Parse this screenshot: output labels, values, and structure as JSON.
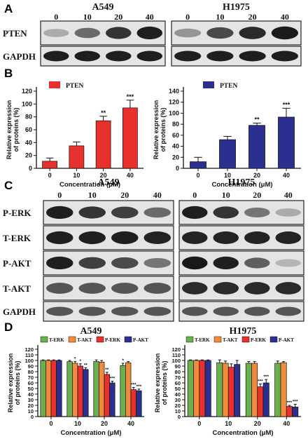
{
  "panel_labels": {
    "a": "A",
    "b": "B",
    "c": "C",
    "d": "D"
  },
  "panel_a": {
    "cells": [
      {
        "title": "A549",
        "concentrations": [
          "0",
          "10",
          "20",
          "40"
        ],
        "bands": [
          {
            "name": "PTEN",
            "intensity": [
              0.3,
              0.6,
              0.85,
              0.95
            ]
          },
          {
            "name": "GAPDH",
            "intensity": [
              0.95,
              0.95,
              0.95,
              0.95
            ]
          }
        ]
      },
      {
        "title": "H1975",
        "concentrations": [
          "0",
          "10",
          "20",
          "40"
        ],
        "bands": [
          {
            "name": "PTEN",
            "intensity": [
              0.4,
              0.75,
              0.9,
              0.97
            ]
          },
          {
            "name": "GAPDH",
            "intensity": [
              0.95,
              0.95,
              0.95,
              0.95
            ]
          }
        ]
      }
    ]
  },
  "panel_c": {
    "cells": [
      {
        "title": "A549",
        "concentrations": [
          "0",
          "10",
          "20",
          "40"
        ],
        "bands": [
          {
            "name": "P-ERK",
            "intensity": [
              0.95,
              0.85,
              0.8,
              0.6
            ]
          },
          {
            "name": "T-ERK",
            "intensity": [
              0.95,
              0.95,
              0.95,
              0.93
            ]
          },
          {
            "name": "P-AKT",
            "intensity": [
              0.95,
              0.8,
              0.75,
              0.55
            ]
          },
          {
            "name": "T-AKT",
            "intensity": [
              0.7,
              0.7,
              0.7,
              0.7
            ]
          },
          {
            "name": "GAPDH",
            "intensity": [
              0.7,
              0.7,
              0.7,
              0.7
            ]
          }
        ]
      },
      {
        "title": "H1975",
        "concentrations": [
          "0",
          "10",
          "20",
          "40"
        ],
        "bands": [
          {
            "name": "P-ERK",
            "intensity": [
              0.95,
              0.85,
              0.55,
              0.3
            ]
          },
          {
            "name": "T-ERK",
            "intensity": [
              0.93,
              0.93,
              0.93,
              0.93
            ]
          },
          {
            "name": "P-AKT",
            "intensity": [
              0.98,
              0.95,
              0.65,
              0.25
            ]
          },
          {
            "name": "T-AKT",
            "intensity": [
              0.9,
              0.9,
              0.9,
              0.9
            ]
          },
          {
            "name": "GAPDH",
            "intensity": [
              0.7,
              0.7,
              0.7,
              0.7
            ]
          }
        ]
      }
    ]
  },
  "chart_data": [
    {
      "type": "bar",
      "title": "",
      "categories": [
        "0",
        "10",
        "20",
        "40"
      ],
      "xlabel": "Concentration (μM)",
      "ylabel": "Relative expression\nof proteins (%)",
      "ylim": [
        0,
        120
      ],
      "yticks": [
        0,
        20,
        40,
        60,
        80,
        100,
        120
      ],
      "grid": false,
      "legend": "top-left",
      "series": [
        {
          "name": "PTEN",
          "color": "#e8302c",
          "values": [
            11,
            35,
            74,
            94
          ],
          "errors": [
            5,
            6,
            7,
            12
          ],
          "sig": [
            "",
            "",
            "**",
            "***"
          ]
        }
      ]
    },
    {
      "type": "bar",
      "title": "",
      "categories": [
        "0",
        "10",
        "20",
        "40"
      ],
      "xlabel": "Concentration (μM)",
      "ylabel": "Relative expression\nof proteins (%)",
      "ylim": [
        0,
        140
      ],
      "yticks": [
        0,
        20,
        40,
        60,
        80,
        100,
        120,
        140
      ],
      "grid": false,
      "legend": "top-left",
      "series": [
        {
          "name": "PTEN",
          "color": "#2b2f8f",
          "values": [
            12,
            52,
            78,
            93
          ],
          "errors": [
            8,
            6,
            4,
            16
          ],
          "sig": [
            "",
            "",
            "**",
            "***"
          ]
        }
      ]
    },
    {
      "type": "bar",
      "title": "A549",
      "categories": [
        "0",
        "10",
        "20",
        "40"
      ],
      "xlabel": "Concentration (μM)",
      "ylabel": "Relative expression\nof proteins (%)",
      "ylim": [
        0,
        120
      ],
      "yticks": [
        0,
        10,
        20,
        30,
        40,
        50,
        60,
        70,
        80,
        90,
        100,
        110,
        120
      ],
      "grid": false,
      "legend": "top",
      "series": [
        {
          "name": "T-ERK",
          "color": "#6ab04c",
          "values": [
            100,
            98,
            98,
            91
          ],
          "errors": [
            1,
            2,
            3,
            4
          ],
          "sig": [
            "",
            "",
            "",
            "*"
          ]
        },
        {
          "name": "T-AKT",
          "color": "#f08a3c",
          "values": [
            100,
            95,
            97,
            96
          ],
          "errors": [
            1,
            3,
            3,
            2
          ],
          "sig": [
            "",
            "*",
            "",
            ""
          ]
        },
        {
          "name": "P-ERK",
          "color": "#e8302c",
          "values": [
            100,
            90,
            75,
            48
          ],
          "errors": [
            1,
            4,
            4,
            4
          ],
          "sig": [
            "",
            "*",
            "**",
            "***"
          ]
        },
        {
          "name": "P-AKT",
          "color": "#2b2f8f",
          "values": [
            100,
            84,
            60,
            46
          ],
          "errors": [
            1,
            3,
            3,
            3
          ],
          "sig": [
            "",
            "**",
            "***",
            "***"
          ]
        }
      ]
    },
    {
      "type": "bar",
      "title": "H1975",
      "categories": [
        "0",
        "10",
        "20",
        "40"
      ],
      "xlabel": "Concentration (μM)",
      "ylabel": "Relative expression\nof proteins (%)",
      "ylim": [
        0,
        120
      ],
      "yticks": [
        0,
        10,
        20,
        30,
        40,
        50,
        60,
        70,
        80,
        90,
        100,
        110,
        120
      ],
      "grid": false,
      "legend": "top",
      "series": [
        {
          "name": "T-ERK",
          "color": "#6ab04c",
          "values": [
            100,
            96,
            95,
            95
          ],
          "errors": [
            1,
            5,
            3,
            4
          ],
          "sig": [
            "",
            "",
            "",
            ""
          ]
        },
        {
          "name": "T-AKT",
          "color": "#f08a3c",
          "values": [
            100,
            95,
            95,
            96
          ],
          "errors": [
            1,
            4,
            3,
            2
          ],
          "sig": [
            "",
            "",
            "",
            ""
          ]
        },
        {
          "name": "P-ERK",
          "color": "#e8302c",
          "values": [
            100,
            88,
            53,
            18
          ],
          "errors": [
            1,
            6,
            5,
            2
          ],
          "sig": [
            "",
            "",
            "***",
            "***"
          ]
        },
        {
          "name": "P-AKT",
          "color": "#2b2f8f",
          "values": [
            100,
            93,
            60,
            17
          ],
          "errors": [
            1,
            7,
            6,
            5
          ],
          "sig": [
            "",
            "",
            "***",
            "***"
          ]
        }
      ]
    }
  ]
}
